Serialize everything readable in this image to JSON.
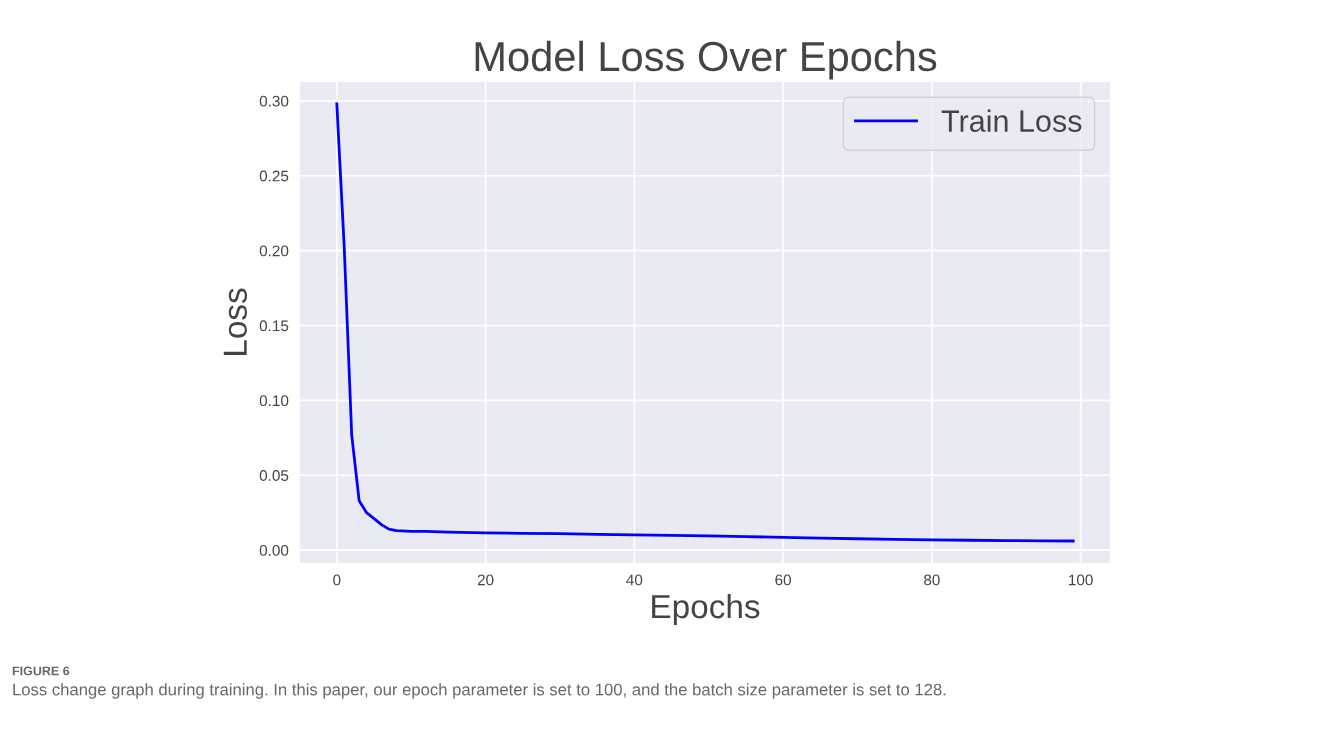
{
  "chart_data": {
    "type": "line",
    "title": "Model Loss Over Epochs",
    "xlabel": "Epochs",
    "ylabel": "Loss",
    "x": [
      0,
      1,
      2,
      3,
      4,
      5,
      6,
      7,
      8,
      10,
      12,
      15,
      20,
      25,
      30,
      35,
      40,
      45,
      50,
      55,
      60,
      65,
      70,
      75,
      80,
      85,
      90,
      95,
      99
    ],
    "series": [
      {
        "name": "Train Loss",
        "color": "#0000ff",
        "values": [
          0.298,
          0.202,
          0.077,
          0.033,
          0.025,
          0.021,
          0.017,
          0.014,
          0.013,
          0.0125,
          0.0125,
          0.012,
          0.0115,
          0.0112,
          0.011,
          0.0105,
          0.0102,
          0.0098,
          0.0095,
          0.009,
          0.0085,
          0.008,
          0.0076,
          0.0072,
          0.0069,
          0.0066,
          0.0064,
          0.0062,
          0.0061
        ]
      }
    ],
    "xlim": [
      -4.95,
      103.95
    ],
    "ylim": [
      -0.0086,
      0.3126
    ],
    "xticks": [
      0,
      20,
      40,
      60,
      80,
      100
    ],
    "yticks": [
      {
        "value": 0,
        "label": "0.00"
      },
      {
        "value": 0.05,
        "label": "0.05"
      },
      {
        "value": 0.1,
        "label": "0.10"
      },
      {
        "value": 0.15,
        "label": "0.15"
      },
      {
        "value": 0.2,
        "label": "0.20"
      },
      {
        "value": 0.25,
        "label": "0.25"
      },
      {
        "value": 0.3,
        "label": "0.30"
      }
    ],
    "grid": true,
    "legend": "top right",
    "annotations": [
      "FIGURE 6",
      "Loss change graph during training. In this paper, our epoch parameter is set to 100, and the batch size parameter is set to 128."
    ]
  }
}
